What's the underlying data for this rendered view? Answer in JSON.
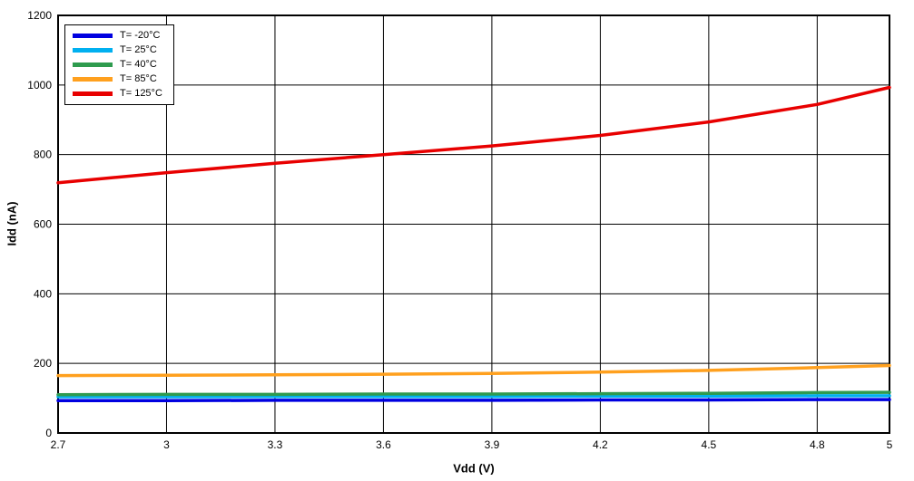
{
  "page": {
    "background": "#ffffff"
  },
  "chart_data": {
    "type": "line",
    "title": "",
    "xlabel": "Vdd (V)",
    "ylabel": "Idd (nA)",
    "xlim": [
      2.7,
      5
    ],
    "ylim": [
      0,
      1200
    ],
    "xticks": [
      2.7,
      3,
      3.3,
      3.6,
      3.9,
      4.2,
      4.5,
      4.8,
      5
    ],
    "xtick_labels": [
      "2.7",
      "3",
      "3.3",
      "3.6",
      "3.9",
      "4.2",
      "4.5",
      "4.8",
      "5"
    ],
    "yticks": [
      0,
      200,
      400,
      600,
      800,
      1000,
      1200
    ],
    "ytick_labels": [
      "0",
      "200",
      "400",
      "600",
      "800",
      "1000",
      "1200"
    ],
    "grid": true,
    "grid_color": "#000000",
    "legend_position": "top-left",
    "x": [
      2.7,
      3.0,
      3.3,
      3.6,
      3.9,
      4.2,
      4.5,
      4.8,
      5.0
    ],
    "series": [
      {
        "name": "T= -20°C",
        "color": "#0000e0",
        "values": [
          93,
          93,
          94,
          94,
          94,
          95,
          95,
          96,
          96
        ]
      },
      {
        "name": "T= 25°C",
        "color": "#00b0f0",
        "values": [
          104,
          104,
          105,
          105,
          105,
          106,
          106,
          107,
          107
        ]
      },
      {
        "name": "T= 40°C",
        "color": "#2e9b4e",
        "values": [
          110,
          111,
          111,
          112,
          112,
          113,
          114,
          116,
          117
        ]
      },
      {
        "name": "T= 85°C",
        "color": "#ffa01e",
        "values": [
          165,
          166,
          167,
          169,
          171,
          175,
          180,
          188,
          194
        ]
      },
      {
        "name": "T= 125°C",
        "color": "#e80000",
        "values": [
          719,
          748,
          775,
          800,
          825,
          855,
          894,
          944,
          993
        ]
      }
    ]
  }
}
